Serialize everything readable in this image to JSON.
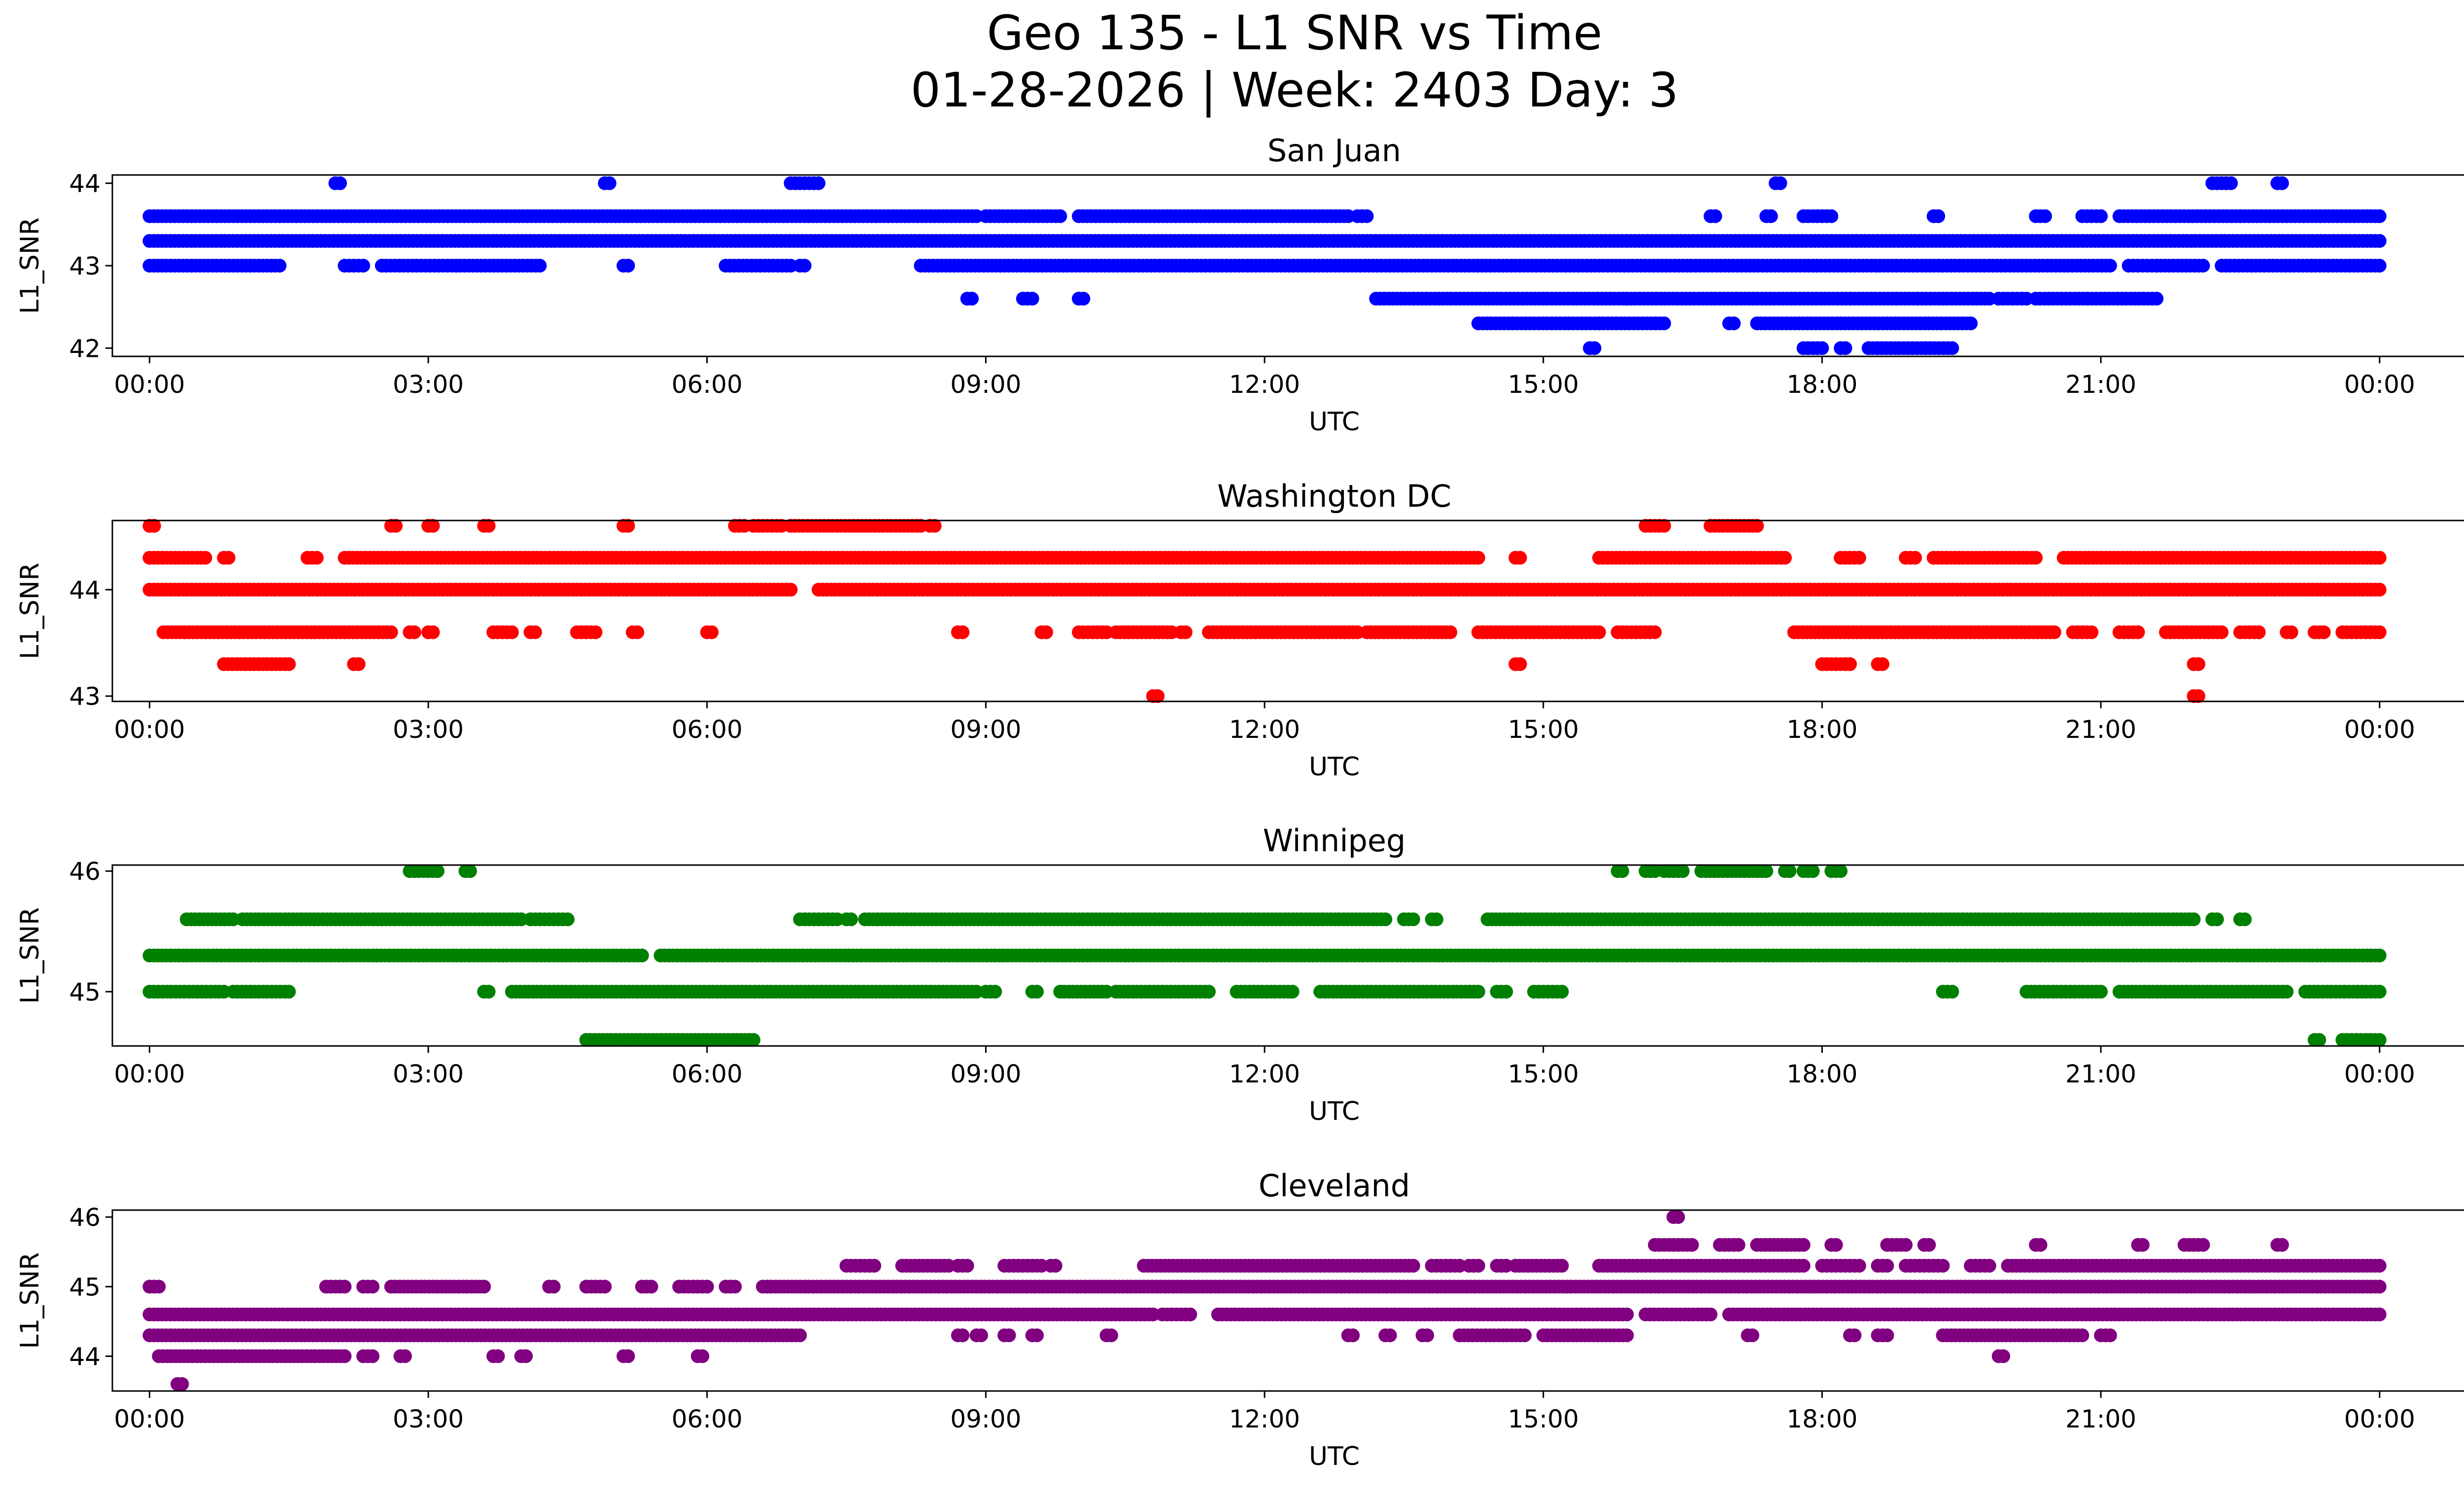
{
  "figure": {
    "title_line1": "Geo 135 - L1 SNR vs Time",
    "title_line2": "01-28-2026 | Week: 2403 Day: 3"
  },
  "chart_data": [
    {
      "type": "scatter",
      "title": "San Juan",
      "xlabel": "UTC",
      "ylabel": "L1_SNR",
      "color": "#0000ff",
      "xlim_hours": [
        -0.4,
        25.9
      ],
      "ylim": [
        41.9,
        44.1
      ],
      "yticks": [
        42,
        43,
        44
      ],
      "xtick_hours": [
        0,
        3,
        6,
        9,
        12,
        15,
        18,
        21,
        24
      ],
      "xtick_labels": [
        "00:00",
        "03:00",
        "06:00",
        "09:00",
        "12:00",
        "15:00",
        "18:00",
        "21:00",
        "00:00"
      ],
      "bands": [
        {
          "y": 43.3,
          "segments": [
            [
              0,
              24
            ]
          ]
        },
        {
          "y": 43.6,
          "segments": [
            [
              0.0,
              8.9
            ],
            [
              9.0,
              9.8
            ],
            [
              10.0,
              12.9
            ],
            [
              13.0,
              13.1
            ],
            [
              16.8,
              16.85
            ],
            [
              17.4,
              17.45
            ],
            [
              17.8,
              18.1
            ],
            [
              19.2,
              19.25
            ],
            [
              20.3,
              20.4
            ],
            [
              20.8,
              21.0
            ],
            [
              21.2,
              22.5
            ],
            [
              22.5,
              24
            ]
          ]
        },
        {
          "y": 43.0,
          "segments": [
            [
              0.0,
              1.4
            ],
            [
              2.1,
              2.3
            ],
            [
              2.5,
              3.3
            ],
            [
              3.3,
              4.2
            ],
            [
              5.1,
              5.15
            ],
            [
              6.2,
              6.9
            ],
            [
              7.0,
              7.05
            ],
            [
              8.3,
              21.1
            ],
            [
              21.3,
              21.6
            ],
            [
              21.6,
              22.1
            ],
            [
              22.3,
              24
            ]
          ]
        },
        {
          "y": 42.6,
          "segments": [
            [
              8.8,
              8.85
            ],
            [
              9.4,
              9.5
            ],
            [
              10.0,
              10.05
            ],
            [
              13.2,
              15.9
            ],
            [
              15.9,
              19.8
            ],
            [
              19.9,
              20.2
            ],
            [
              20.3,
              21.6
            ]
          ]
        },
        {
          "y": 42.3,
          "segments": [
            [
              14.3,
              15.6
            ],
            [
              15.6,
              16.3
            ],
            [
              17.0,
              17.05
            ],
            [
              17.3,
              19.6
            ]
          ]
        },
        {
          "y": 42.0,
          "segments": [
            [
              15.5,
              15.55
            ],
            [
              17.8,
              18.0
            ],
            [
              18.2,
              18.25
            ],
            [
              18.5,
              19.4
            ]
          ]
        },
        {
          "y": 44.0,
          "segments": [
            [
              2.0,
              2.05
            ],
            [
              4.9,
              4.95
            ],
            [
              6.9,
              7.2
            ],
            [
              17.5,
              17.55
            ],
            [
              22.2,
              22.4
            ],
            [
              22.9,
              22.95
            ]
          ]
        }
      ]
    },
    {
      "type": "scatter",
      "title": "Washington DC",
      "xlabel": "UTC",
      "ylabel": "L1_SNR",
      "color": "#ff0000",
      "xlim_hours": [
        -0.4,
        25.9
      ],
      "ylim": [
        42.95,
        44.65
      ],
      "yticks": [
        43,
        44
      ],
      "xtick_hours": [
        0,
        3,
        6,
        9,
        12,
        15,
        18,
        21,
        24
      ],
      "xtick_labels": [
        "00:00",
        "03:00",
        "06:00",
        "09:00",
        "12:00",
        "15:00",
        "18:00",
        "21:00",
        "00:00"
      ],
      "bands": [
        {
          "y": 44.0,
          "segments": [
            [
              0.0,
              6.9
            ],
            [
              7.2,
              24
            ]
          ]
        },
        {
          "y": 44.3,
          "segments": [
            [
              0.0,
              0.6
            ],
            [
              0.8,
              0.85
            ],
            [
              1.7,
              1.8
            ],
            [
              2.1,
              14.3
            ],
            [
              14.7,
              14.75
            ],
            [
              15.6,
              17.6
            ],
            [
              18.2,
              18.4
            ],
            [
              18.9,
              19.0
            ],
            [
              19.2,
              20.3
            ],
            [
              20.6,
              24
            ]
          ]
        },
        {
          "y": 43.6,
          "segments": [
            [
              0.15,
              2.6
            ],
            [
              2.8,
              2.85
            ],
            [
              3.0,
              3.05
            ],
            [
              3.7,
              3.9
            ],
            [
              4.1,
              4.15
            ],
            [
              4.6,
              4.8
            ],
            [
              5.2,
              5.25
            ],
            [
              6.0,
              6.05
            ],
            [
              8.7,
              8.75
            ],
            [
              9.6,
              9.65
            ],
            [
              10.0,
              10.3
            ],
            [
              10.4,
              11.0
            ],
            [
              11.1,
              11.15
            ],
            [
              11.4,
              13.0
            ],
            [
              13.1,
              14.0
            ],
            [
              14.3,
              15.6
            ],
            [
              15.8,
              16.2
            ],
            [
              17.7,
              20.5
            ],
            [
              20.7,
              20.9
            ],
            [
              21.2,
              21.4
            ],
            [
              21.7,
              22.3
            ],
            [
              22.5,
              22.7
            ],
            [
              23.0,
              23.05
            ],
            [
              23.3,
              23.4
            ],
            [
              23.6,
              24
            ]
          ]
        },
        {
          "y": 44.6,
          "segments": [
            [
              0.0,
              0.05
            ],
            [
              2.6,
              2.65
            ],
            [
              3.0,
              3.05
            ],
            [
              3.6,
              3.65
            ],
            [
              5.1,
              5.15
            ],
            [
              6.3,
              6.4
            ],
            [
              6.5,
              6.8
            ],
            [
              6.9,
              8.3
            ],
            [
              8.4,
              8.45
            ],
            [
              16.1,
              16.3
            ],
            [
              16.8,
              17.3
            ]
          ]
        },
        {
          "y": 43.3,
          "segments": [
            [
              0.8,
              1.5
            ],
            [
              2.2,
              2.25
            ],
            [
              14.7,
              14.75
            ],
            [
              18.0,
              18.3
            ],
            [
              18.6,
              18.65
            ],
            [
              22.0,
              22.05
            ]
          ]
        },
        {
          "y": 43.0,
          "segments": [
            [
              10.8,
              10.85
            ],
            [
              22.0,
              22.05
            ]
          ]
        }
      ]
    },
    {
      "type": "scatter",
      "title": "Winnipeg",
      "xlabel": "UTC",
      "ylabel": "L1_SNR",
      "color": "#008000",
      "xlim_hours": [
        -0.4,
        25.9
      ],
      "ylim": [
        44.55,
        46.05
      ],
      "yticks": [
        45,
        46
      ],
      "xtick_hours": [
        0,
        3,
        6,
        9,
        12,
        15,
        18,
        21,
        24
      ],
      "xtick_labels": [
        "00:00",
        "03:00",
        "06:00",
        "09:00",
        "12:00",
        "15:00",
        "18:00",
        "21:00",
        "00:00"
      ],
      "bands": [
        {
          "y": 45.3,
          "segments": [
            [
              0.0,
              5.3
            ],
            [
              5.5,
              24
            ]
          ]
        },
        {
          "y": 45.6,
          "segments": [
            [
              0.4,
              0.9
            ],
            [
              1.0,
              4.0
            ],
            [
              4.1,
              4.5
            ],
            [
              7.0,
              7.4
            ],
            [
              7.5,
              7.55
            ],
            [
              7.7,
              13.3
            ],
            [
              13.5,
              13.6
            ],
            [
              13.8,
              13.85
            ],
            [
              14.4,
              22.0
            ],
            [
              22.2,
              22.25
            ],
            [
              22.5,
              22.55
            ]
          ]
        },
        {
          "y": 45.0,
          "segments": [
            [
              0.0,
              0.8
            ],
            [
              0.9,
              1.5
            ],
            [
              3.6,
              3.65
            ],
            [
              3.9,
              8.9
            ],
            [
              9.0,
              9.1
            ],
            [
              9.5,
              9.55
            ],
            [
              9.8,
              10.3
            ],
            [
              10.4,
              11.4
            ],
            [
              11.7,
              12.3
            ],
            [
              12.6,
              14.3
            ],
            [
              14.5,
              14.6
            ],
            [
              14.9,
              15.2
            ],
            [
              19.3,
              19.4
            ],
            [
              20.2,
              21.0
            ],
            [
              21.2,
              23.0
            ],
            [
              23.2,
              24
            ]
          ]
        },
        {
          "y": 44.6,
          "segments": [
            [
              4.7,
              6.5
            ],
            [
              23.3,
              23.35
            ],
            [
              23.6,
              24
            ]
          ]
        },
        {
          "y": 46.0,
          "segments": [
            [
              2.8,
              3.1
            ],
            [
              3.4,
              3.45
            ],
            [
              15.8,
              15.85
            ],
            [
              16.1,
              16.2
            ],
            [
              16.3,
              16.5
            ],
            [
              16.7,
              17.4
            ],
            [
              17.6,
              17.65
            ],
            [
              17.8,
              17.9
            ],
            [
              18.1,
              18.2
            ]
          ]
        }
      ]
    },
    {
      "type": "scatter",
      "title": "Cleveland",
      "xlabel": "UTC",
      "ylabel": "L1_SNR",
      "color": "#800080",
      "xlim_hours": [
        -0.4,
        25.9
      ],
      "ylim": [
        43.5,
        46.1
      ],
      "yticks": [
        44,
        45,
        46
      ],
      "xtick_hours": [
        0,
        3,
        6,
        9,
        12,
        15,
        18,
        21,
        24
      ],
      "xtick_labels": [
        "00:00",
        "03:00",
        "06:00",
        "09:00",
        "12:00",
        "15:00",
        "18:00",
        "21:00",
        "00:00"
      ],
      "bands": [
        {
          "y": 44.6,
          "segments": [
            [
              0.0,
              10.8
            ],
            [
              10.9,
              11.2
            ],
            [
              11.5,
              15.9
            ],
            [
              16.1,
              16.8
            ],
            [
              17.0,
              24
            ]
          ]
        },
        {
          "y": 44.3,
          "segments": [
            [
              0.0,
              7.0
            ],
            [
              8.7,
              8.75
            ],
            [
              8.9,
              8.95
            ],
            [
              9.2,
              9.25
            ],
            [
              9.5,
              9.55
            ],
            [
              10.3,
              10.35
            ],
            [
              12.9,
              12.95
            ],
            [
              13.3,
              13.35
            ],
            [
              13.7,
              13.75
            ],
            [
              14.1,
              14.8
            ],
            [
              15.0,
              15.9
            ],
            [
              17.2,
              17.25
            ],
            [
              18.3,
              18.35
            ],
            [
              18.6,
              18.7
            ],
            [
              19.3,
              20.8
            ],
            [
              21.0,
              21.1
            ]
          ]
        },
        {
          "y": 44.0,
          "segments": [
            [
              0.1,
              2.1
            ],
            [
              2.3,
              2.4
            ],
            [
              2.7,
              2.75
            ],
            [
              3.7,
              3.75
            ],
            [
              4.0,
              4.05
            ],
            [
              5.1,
              5.15
            ],
            [
              5.9,
              5.95
            ],
            [
              19.9,
              19.95
            ]
          ]
        },
        {
          "y": 45.0,
          "segments": [
            [
              0.0,
              0.1
            ],
            [
              1.9,
              2.1
            ],
            [
              2.3,
              2.4
            ],
            [
              2.6,
              3.6
            ],
            [
              4.3,
              4.35
            ],
            [
              4.7,
              4.9
            ],
            [
              5.3,
              5.4
            ],
            [
              5.7,
              6.0
            ],
            [
              6.2,
              6.3
            ],
            [
              6.6,
              24
            ]
          ]
        },
        {
          "y": 45.3,
          "segments": [
            [
              7.5,
              7.8
            ],
            [
              8.1,
              8.6
            ],
            [
              8.7,
              8.8
            ],
            [
              9.2,
              9.6
            ],
            [
              9.7,
              9.75
            ],
            [
              10.7,
              13.6
            ],
            [
              13.8,
              14.1
            ],
            [
              14.2,
              14.3
            ],
            [
              14.5,
              14.6
            ],
            [
              14.7,
              15.2
            ],
            [
              15.6,
              17.8
            ],
            [
              18.0,
              18.4
            ],
            [
              18.6,
              18.7
            ],
            [
              18.9,
              19.3
            ],
            [
              19.6,
              19.8
            ],
            [
              20.0,
              24
            ]
          ]
        },
        {
          "y": 45.6,
          "segments": [
            [
              16.2,
              16.6
            ],
            [
              16.9,
              17.1
            ],
            [
              17.3,
              17.8
            ],
            [
              18.1,
              18.15
            ],
            [
              18.7,
              18.9
            ],
            [
              19.1,
              19.15
            ],
            [
              20.3,
              20.35
            ],
            [
              21.4,
              21.45
            ],
            [
              21.9,
              22.1
            ],
            [
              22.9,
              22.95
            ]
          ]
        },
        {
          "y": 46.0,
          "segments": [
            [
              16.4,
              16.45
            ]
          ]
        },
        {
          "y": 43.6,
          "segments": [
            [
              0.3,
              0.35
            ]
          ]
        }
      ]
    }
  ]
}
